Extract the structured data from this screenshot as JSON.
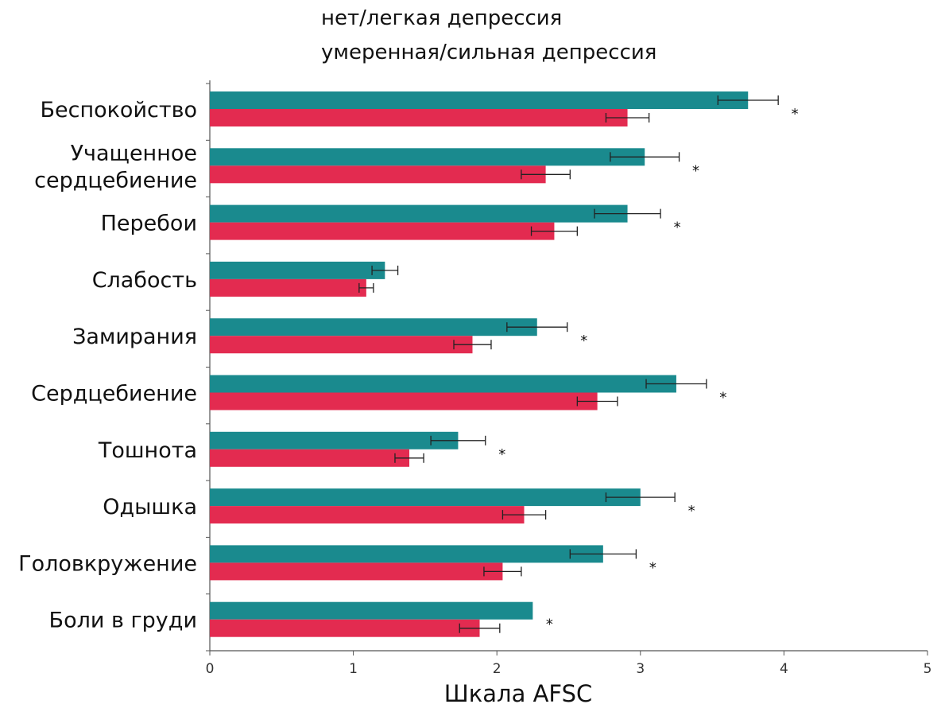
{
  "chart_data": {
    "type": "bar",
    "orientation": "horizontal",
    "xlabel": "Шкала AFSC",
    "xlim": [
      0,
      5
    ],
    "xticks": [
      "0",
      "1",
      "2",
      "3",
      "4",
      "5"
    ],
    "legend_position": "top-center",
    "grid": false,
    "categories": [
      [
        "Беспокойство"
      ],
      [
        "Учащенное",
        "сердцебиение"
      ],
      [
        "Перебои"
      ],
      [
        "Слабость"
      ],
      [
        "Замирания"
      ],
      [
        "Сердцебиение"
      ],
      [
        "Тошнота"
      ],
      [
        "Одышка"
      ],
      [
        "Головкружение"
      ],
      [
        "Боли в груди"
      ]
    ],
    "series": [
      {
        "name": "умеренная/сильная депрессия",
        "color": "#1a8a8e",
        "values": [
          3.75,
          3.03,
          2.91,
          1.22,
          2.28,
          3.25,
          1.73,
          3.0,
          2.74,
          2.25
        ],
        "error": [
          0.21,
          0.24,
          0.23,
          0.09,
          0.21,
          0.21,
          0.19,
          0.24,
          0.23,
          null
        ]
      },
      {
        "name": "нет/легкая депрессия",
        "color": "#e32b50",
        "values": [
          2.91,
          2.34,
          2.4,
          1.09,
          1.83,
          2.7,
          1.39,
          2.19,
          2.04,
          1.88
        ],
        "error": [
          0.15,
          0.17,
          0.16,
          0.05,
          0.13,
          0.14,
          0.1,
          0.15,
          0.13,
          0.14
        ]
      }
    ],
    "significance_marks": [
      "*",
      "*",
      "*",
      "",
      "*",
      "*",
      "*",
      "*",
      "*",
      "*"
    ]
  }
}
